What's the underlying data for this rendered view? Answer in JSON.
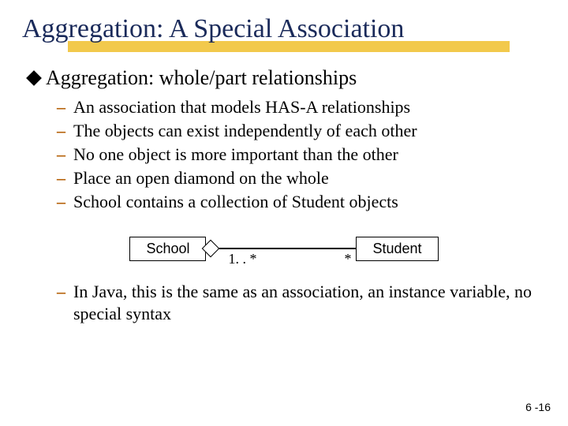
{
  "title": "Aggregation: A Special Association",
  "mainBullet": "Aggregation: whole/part relationships",
  "subBullets": [
    "An association that models HAS-A relationships",
    "The objects can exist independently of each other",
    "No one object is more important than the other",
    "Place an open diamond on the whole",
    "School contains a collection of Student objects"
  ],
  "diagram": {
    "leftBox": "School",
    "rightBox": "Student",
    "multLeft": "1. . *",
    "multRight": "*"
  },
  "footBullet": "In Java, this is the same as an association, an instance variable, no special syntax",
  "slideNumber": "6 -16",
  "colors": {
    "titleColor": "#1a2a5a",
    "underline": "#f2c94c",
    "dash": "#b45f06"
  }
}
